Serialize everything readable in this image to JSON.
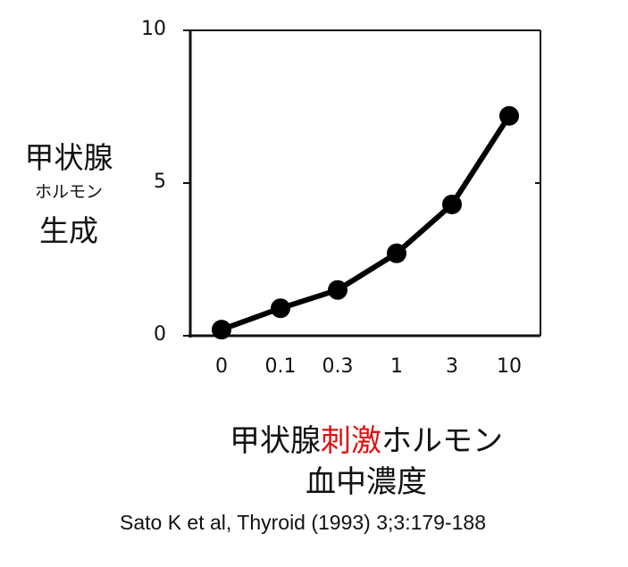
{
  "chart_data": {
    "type": "line",
    "categories": [
      "0",
      "0.1",
      "0.3",
      "1",
      "3",
      "10"
    ],
    "values": [
      0.2,
      0.9,
      1.5,
      2.7,
      4.3,
      7.2
    ],
    "y_ticks": [
      "0",
      "5",
      "10"
    ],
    "ylim": [
      0,
      10
    ],
    "ylabel_lines": [
      "甲状腺",
      "ホルモン",
      "生成"
    ],
    "xlabel_line1_parts": [
      {
        "text": "甲状腺",
        "color": "#111111"
      },
      {
        "text": "刺激",
        "color": "#dd1111"
      },
      {
        "text": "ホルモン",
        "color": "#111111"
      }
    ],
    "xlabel_line2": "血中濃度",
    "grid": false,
    "legend": "none",
    "line_color": "#000000",
    "marker_color": "#000000"
  },
  "citation": "Sato K et al, Thyroid (1993) 3;3:179-188"
}
